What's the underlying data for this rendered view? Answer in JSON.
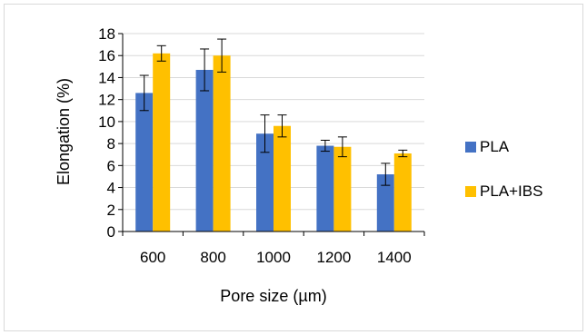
{
  "chart_data": {
    "type": "bar",
    "title": "",
    "xlabel": "Pore size (µm)",
    "ylabel": "Elongation (%)",
    "categories": [
      "600",
      "800",
      "1000",
      "1200",
      "1400"
    ],
    "ylim": [
      0,
      18
    ],
    "yticks": [
      0,
      2,
      4,
      6,
      8,
      10,
      12,
      14,
      16,
      18
    ],
    "grid": true,
    "legend_position": "right",
    "series": [
      {
        "name": "PLA",
        "color": "#4472C4",
        "values": [
          12.6,
          14.7,
          8.9,
          7.8,
          5.2
        ],
        "errors": [
          1.6,
          1.9,
          1.7,
          0.5,
          1.0
        ]
      },
      {
        "name": "PLA+IBS",
        "color": "#FFC000",
        "values": [
          16.2,
          16.0,
          9.6,
          7.7,
          7.1
        ],
        "errors": [
          0.7,
          1.5,
          1.0,
          0.9,
          0.3
        ]
      }
    ]
  }
}
